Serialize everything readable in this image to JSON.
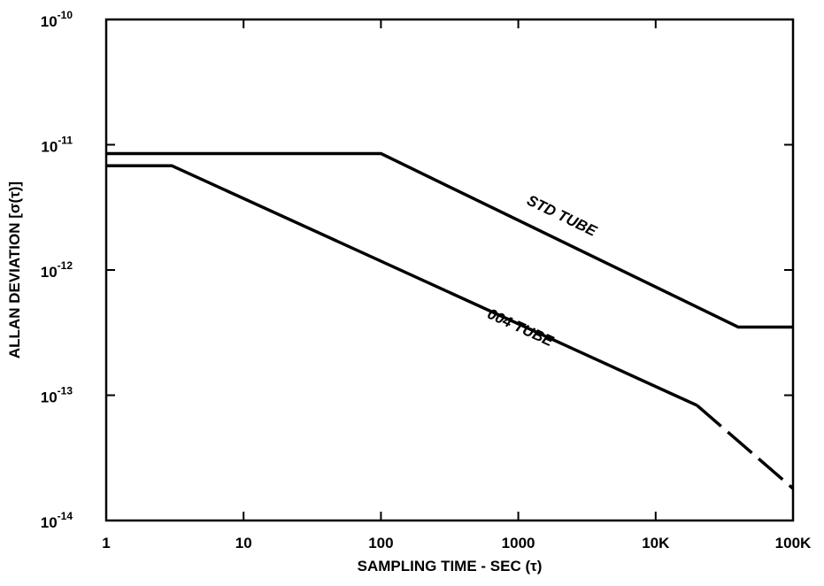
{
  "chart_data": {
    "type": "line",
    "title": "",
    "xlabel": "SAMPLING TIME - SEC (τ)",
    "ylabel": "ALLAN DEVIATION [σ(τ)]",
    "x_scale": "log",
    "y_scale": "log",
    "xlim": [
      1,
      100000
    ],
    "ylim": [
      1e-14,
      1e-10
    ],
    "grid": false,
    "x_ticks": [
      {
        "value": 1,
        "label": "1"
      },
      {
        "value": 10,
        "label": "10"
      },
      {
        "value": 100,
        "label": "100"
      },
      {
        "value": 1000,
        "label": "1000"
      },
      {
        "value": 10000,
        "label": "10K"
      },
      {
        "value": 100000,
        "label": "100K"
      }
    ],
    "y_ticks": [
      {
        "value": 1e-10,
        "base": "10",
        "exp": "-10"
      },
      {
        "value": 1e-11,
        "base": "10",
        "exp": "-11"
      },
      {
        "value": 1e-12,
        "base": "10",
        "exp": "-12"
      },
      {
        "value": 1e-13,
        "base": "10",
        "exp": "-13"
      },
      {
        "value": 1e-14,
        "base": "10",
        "exp": "-14"
      }
    ],
    "series": [
      {
        "name": "STD TUBE",
        "color": "#000000",
        "points": [
          [
            1,
            8.5e-12
          ],
          [
            100,
            8.5e-12
          ],
          [
            40000,
            3.5e-13
          ],
          [
            100000,
            3.5e-13
          ]
        ],
        "dashed_points": []
      },
      {
        "name": "004 TUBE",
        "color": "#000000",
        "points": [
          [
            1,
            6.8e-12
          ],
          [
            3,
            6.8e-12
          ],
          [
            20000,
            8.3e-14
          ]
        ],
        "dashed_points": [
          [
            20000,
            8.3e-14
          ],
          [
            100000,
            1.8e-14
          ]
        ]
      }
    ],
    "annotations": [
      {
        "text": "STD TUBE",
        "x": 2000,
        "y": 2.5e-12
      },
      {
        "text": "004 TUBE",
        "x": 1000,
        "y": 3.2e-13
      }
    ]
  }
}
